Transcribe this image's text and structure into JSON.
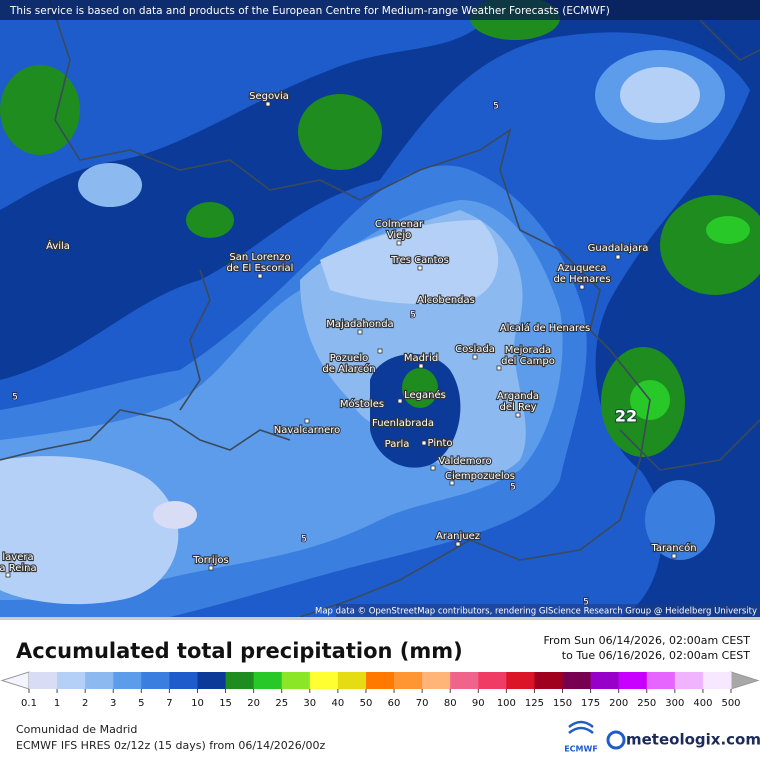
{
  "header": {
    "notice": "This service is based on data and products of the European Centre for Medium-range Weather Forecasts (ECMWF)"
  },
  "map": {
    "attribution": "Map data © OpenStreetMap contributors, rendering GIScience Research Group @ Heidelberg University",
    "places": [
      {
        "lines": [
          "Segovia"
        ]
      },
      {
        "lines": [
          "Ávila"
        ]
      },
      {
        "lines": [
          "Colmenar",
          "Viejo"
        ]
      },
      {
        "lines": [
          "San Lorenzo",
          "de El Escorial"
        ]
      },
      {
        "lines": [
          "Tres Cantos"
        ]
      },
      {
        "lines": [
          "Guadalajara"
        ]
      },
      {
        "lines": [
          "Azuqueca",
          "de Henares"
        ]
      },
      {
        "lines": [
          "Alcobendas"
        ]
      },
      {
        "lines": [
          "Majadahonda"
        ]
      },
      {
        "lines": [
          "Alcalá de Henares"
        ]
      },
      {
        "lines": [
          "Madrid"
        ]
      },
      {
        "lines": [
          "Coslada"
        ]
      },
      {
        "lines": [
          "Pozuelo",
          "de Alarcón"
        ]
      },
      {
        "lines": [
          "Mejorada",
          "del Campo"
        ]
      },
      {
        "lines": [
          "Leganés"
        ]
      },
      {
        "lines": [
          "Móstoles"
        ]
      },
      {
        "lines": [
          "Arganda",
          "del Rey"
        ]
      },
      {
        "lines": [
          "Fuenlabrada"
        ]
      },
      {
        "lines": [
          "Navalcarnero"
        ]
      },
      {
        "lines": [
          "Parla"
        ]
      },
      {
        "lines": [
          "Pinto"
        ]
      },
      {
        "lines": [
          "Valdemoro"
        ]
      },
      {
        "lines": [
          "Ciempozuelos"
        ]
      },
      {
        "lines": [
          "Aranjuez"
        ]
      },
      {
        "lines": [
          "Torrijos"
        ]
      },
      {
        "lines": [
          "Tarancón"
        ]
      },
      {
        "lines": [
          "lavera",
          "a Reina"
        ]
      }
    ],
    "contour_labels": [
      5,
      5,
      5,
      5,
      5,
      5
    ],
    "max_label": 22
  },
  "panel": {
    "title": "Accumulated total precipitation (mm)",
    "from": "From Sun 06/14/2026, 02:00am CEST",
    "to": "to Tue 06/16/2026, 02:00am CEST",
    "region": "Comunidad de Madrid",
    "model": "ECMWF IFS HRES 0z/12z (15 days) from 06/14/2026/00z",
    "logo_left": "ECMWF",
    "logo_right": "meteologix.com"
  },
  "legend": {
    "ticks": [
      0.1,
      1,
      2,
      3,
      5,
      7,
      10,
      15,
      20,
      25,
      30,
      40,
      50,
      60,
      70,
      80,
      90,
      100,
      125,
      150,
      175,
      200,
      250,
      300,
      400,
      500
    ],
    "colors": [
      "#d8dcf4",
      "#b4d0f6",
      "#8cbaf0",
      "#5c9cea",
      "#3a7ee0",
      "#1e5ccc",
      "#0c3a98",
      "#1e8c1e",
      "#28c828",
      "#8ce628",
      "#ffff32",
      "#e6dc14",
      "#ff7800",
      "#ff9632",
      "#ffb478",
      "#f0648c",
      "#f03c64",
      "#dc1428",
      "#a0001e",
      "#780050",
      "#9600c8",
      "#c800ff",
      "#e664ff",
      "#f0b4ff",
      "#f8e8ff"
    ],
    "low_color": "#f4f4ff",
    "high_color": "#a8a8a8"
  }
}
